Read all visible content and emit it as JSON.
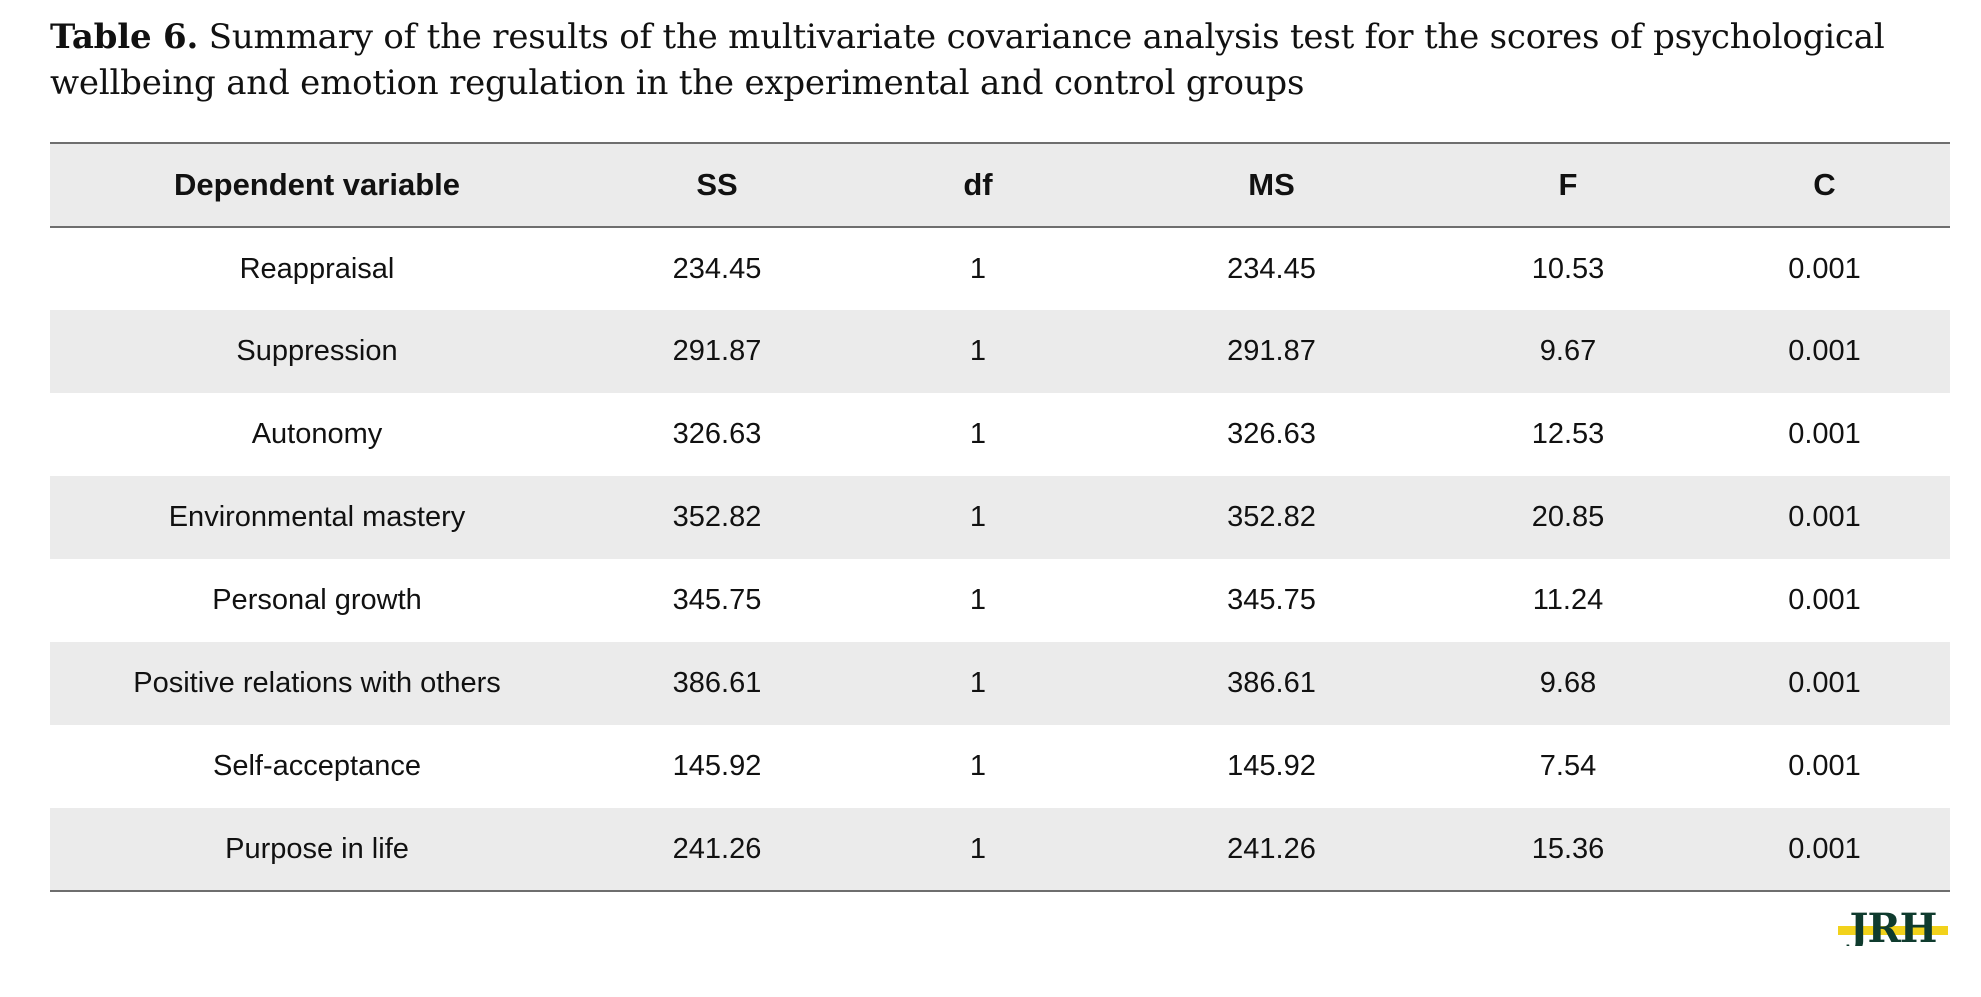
{
  "caption": {
    "label": "Table 6.",
    "text": "Summary of the results of the multivariate covariance analysis test for the scores of psychological wellbeing and emotion regulation in the experimental and control groups"
  },
  "table": {
    "headers": [
      "Dependent variable",
      "SS",
      "df",
      "MS",
      "F",
      "C"
    ],
    "rows": [
      [
        "Reappraisal",
        "234.45",
        "1",
        "234.45",
        "10.53",
        "0.001"
      ],
      [
        "Suppression",
        "291.87",
        "1",
        "291.87",
        "9.67",
        "0.001"
      ],
      [
        "Autonomy",
        "326.63",
        "1",
        "326.63",
        "12.53",
        "0.001"
      ],
      [
        "Environmental mastery",
        "352.82",
        "1",
        "352.82",
        "20.85",
        "0.001"
      ],
      [
        "Personal growth",
        "345.75",
        "1",
        "345.75",
        "11.24",
        "0.001"
      ],
      [
        "Positive relations with others",
        "386.61",
        "1",
        "386.61",
        "9.68",
        "0.001"
      ],
      [
        "Self-acceptance",
        "145.92",
        "1",
        "145.92",
        "7.54",
        "0.001"
      ],
      [
        "Purpose in life",
        "241.26",
        "1",
        "241.26",
        "15.36",
        "0.001"
      ]
    ]
  },
  "logo": {
    "text": "JRH",
    "text_color": "#0f3b2e",
    "highlight_color": "#f2d21b"
  }
}
